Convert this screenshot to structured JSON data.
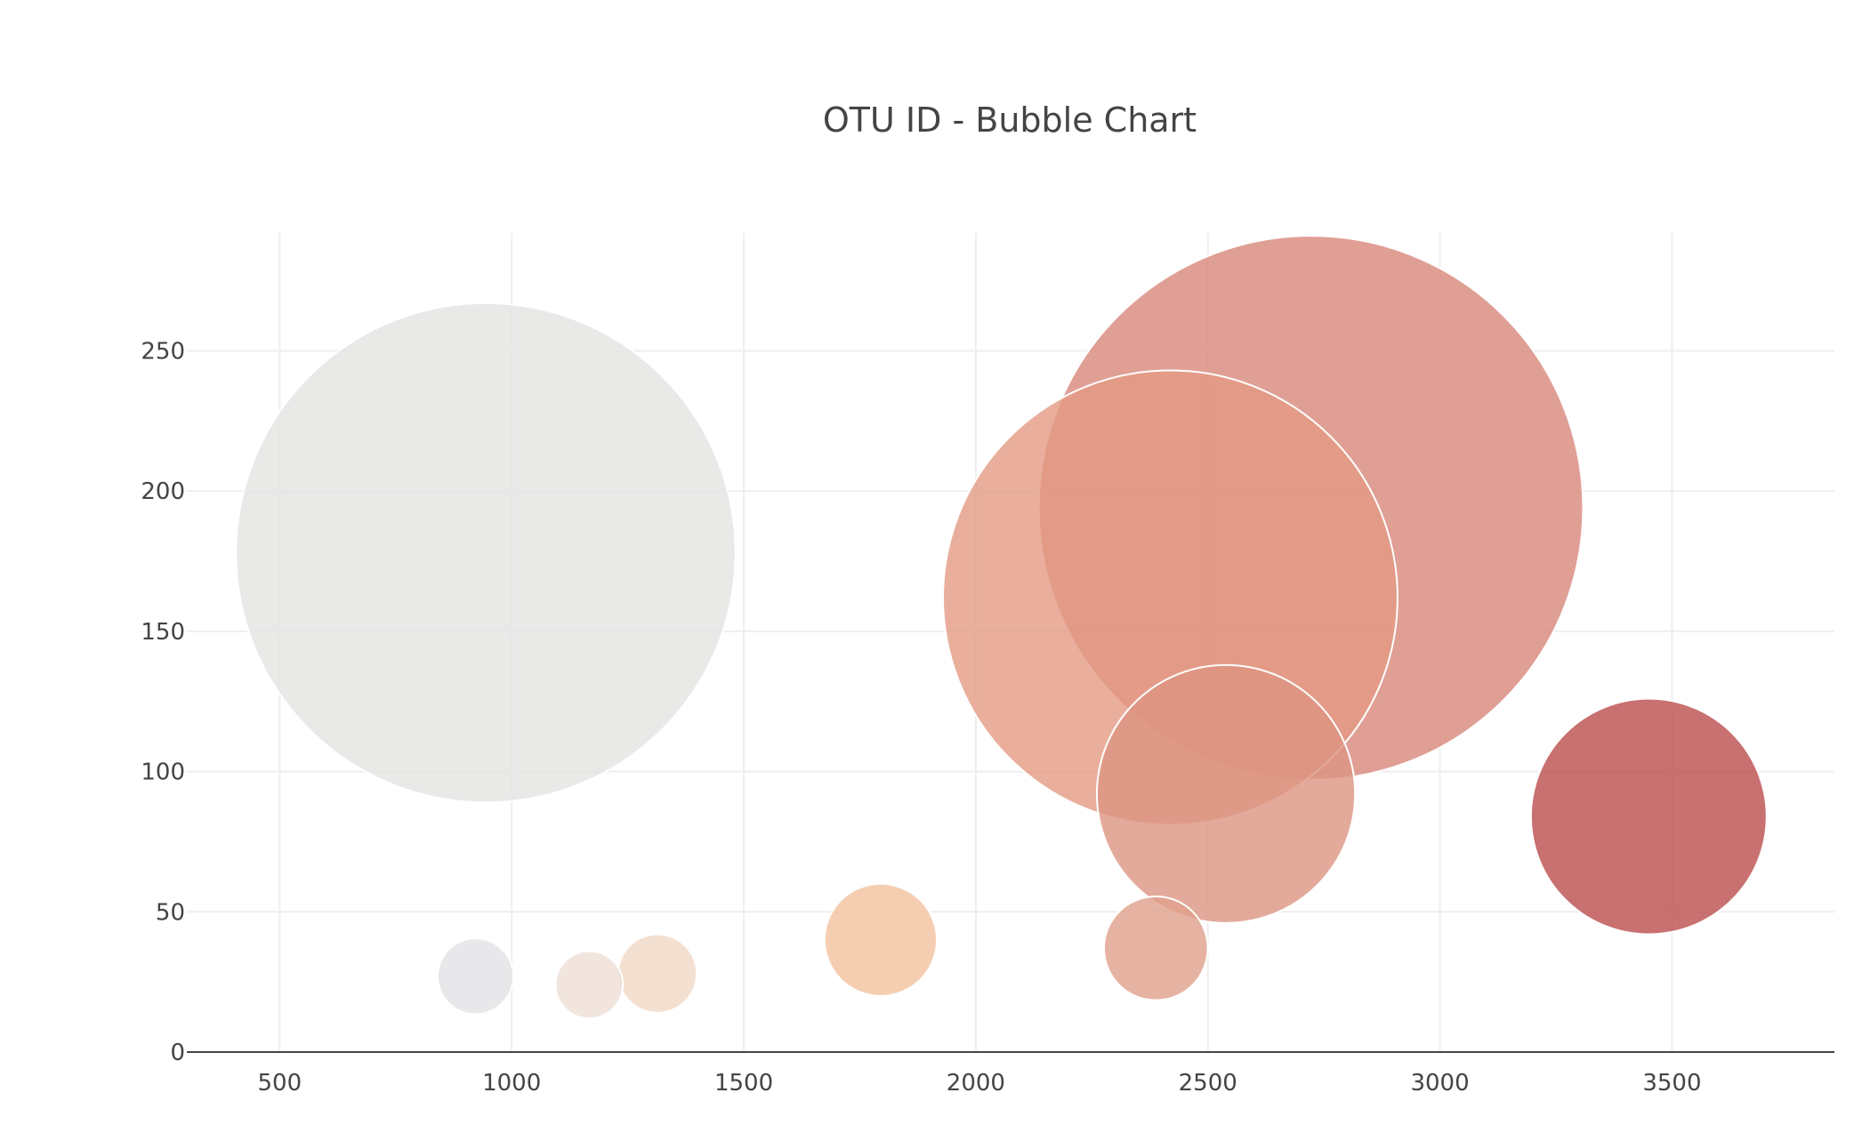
{
  "chart_data": {
    "type": "scatter",
    "title": "OTU ID - Bubble Chart",
    "xlabel": "",
    "ylabel": "",
    "xlim": [
      300,
      3850
    ],
    "ylim": [
      0,
      292
    ],
    "x_ticks": [
      500,
      1000,
      1500,
      2000,
      2500,
      3000,
      3500
    ],
    "y_ticks": [
      0,
      50,
      100,
      150,
      200,
      250
    ],
    "grid": true,
    "legend": "none",
    "size_unit": "same as y",
    "series": [
      {
        "points": [
          {
            "x": 944,
            "y": 178,
            "size": 178,
            "color": "#e4e3e2"
          },
          {
            "x": 2722,
            "y": 194,
            "size": 194,
            "color": "#d8877a"
          },
          {
            "x": 2419,
            "y": 162,
            "size": 162,
            "color": "#e39a83"
          },
          {
            "x": 2539,
            "y": 92,
            "size": 92,
            "color": "#dc9582"
          },
          {
            "x": 3450,
            "y": 84,
            "size": 84,
            "color": "#bb4c4c"
          },
          {
            "x": 1795,
            "y": 40,
            "size": 40,
            "color": "#f2c29f"
          },
          {
            "x": 2388,
            "y": 37,
            "size": 37,
            "color": "#e0a08c"
          },
          {
            "x": 1314,
            "y": 28,
            "size": 28,
            "color": "#f1d8c5"
          },
          {
            "x": 922,
            "y": 27,
            "size": 27,
            "color": "#e2e2e6"
          },
          {
            "x": 1167,
            "y": 24,
            "size": 24,
            "color": "#eedfd6"
          }
        ]
      }
    ]
  },
  "colors": {
    "grid": "#eeeeee",
    "axis_line": "#444444",
    "tick_text": "#444444",
    "title_text": "#444444",
    "bubble_stroke": "#ffffff"
  }
}
